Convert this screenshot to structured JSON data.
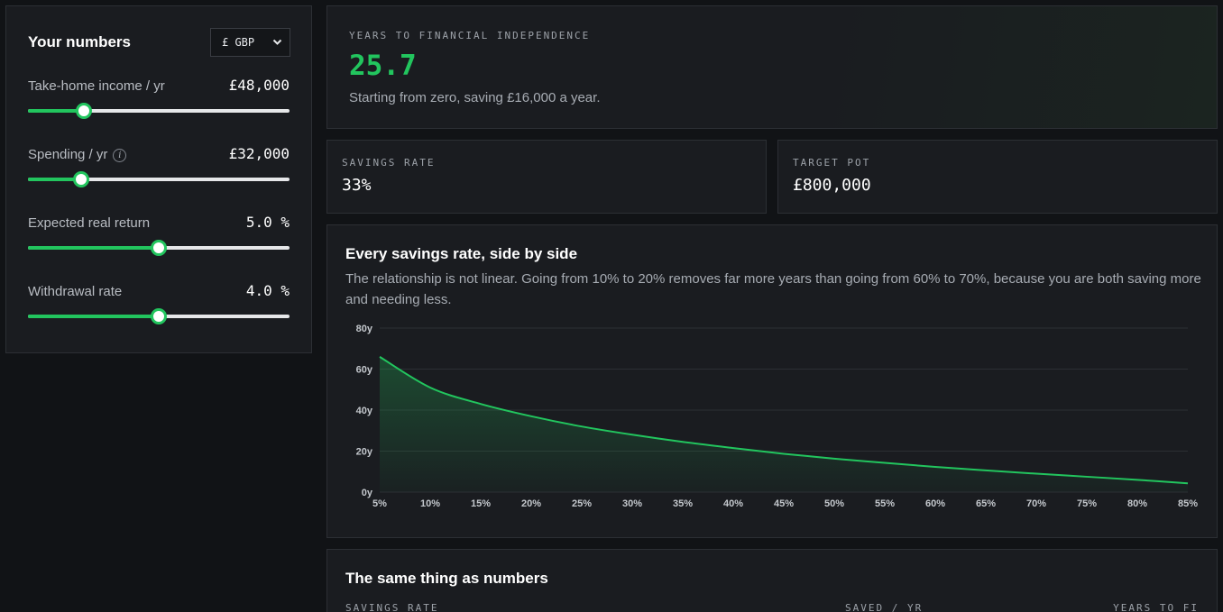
{
  "controls": {
    "title": "Your numbers",
    "currency": {
      "selected": "£ GBP"
    },
    "sliders": [
      {
        "label": "Take-home income / yr",
        "value": "£48,000",
        "fraction": 0.215,
        "info": false
      },
      {
        "label": "Spending / yr",
        "value": "£32,000",
        "fraction": 0.205,
        "info": true
      },
      {
        "label": "Expected real return",
        "value": "5.0 %",
        "fraction": 0.5,
        "info": false
      },
      {
        "label": "Withdrawal rate",
        "value": "4.0 %",
        "fraction": 0.5,
        "info": false
      }
    ]
  },
  "hero": {
    "label": "YEARS TO FINANCIAL INDEPENDENCE",
    "value": "25.7",
    "subtitle": "Starting from zero, saving £16,000 a year."
  },
  "stats": {
    "savings_rate": {
      "label": "SAVINGS RATE",
      "value": "33%"
    },
    "target_pot": {
      "label": "TARGET POT",
      "value": "£800,000"
    }
  },
  "chart_section": {
    "title": "Every savings rate, side by side",
    "description": "The relationship is not linear. Going from 10% to 20% removes far more years than going from 60% to 70%, because you are both saving more and needing less."
  },
  "chart_data": {
    "type": "area",
    "x": [
      5,
      10,
      15,
      20,
      25,
      30,
      35,
      40,
      45,
      50,
      55,
      60,
      65,
      70,
      75,
      80,
      85
    ],
    "y": [
      66.0,
      51.0,
      43.0,
      37.0,
      32.0,
      28.0,
      24.5,
      21.5,
      18.7,
      16.3,
      14.3,
      12.3,
      10.6,
      9.0,
      7.5,
      6.0,
      4.3
    ],
    "x_tick_labels": [
      "5%",
      "10%",
      "15%",
      "20%",
      "25%",
      "30%",
      "35%",
      "40%",
      "45%",
      "50%",
      "55%",
      "60%",
      "65%",
      "70%",
      "75%",
      "80%",
      "85%"
    ],
    "y_ticks": [
      0,
      20,
      40,
      60,
      80
    ],
    "y_tick_labels": [
      "0y",
      "20y",
      "40y",
      "60y",
      "80y"
    ],
    "xlim": [
      5,
      85
    ],
    "ylim": [
      0,
      80
    ],
    "grid": true,
    "color": "#22c55e"
  },
  "table_section": {
    "title": "The same thing as numbers",
    "columns": [
      "SAVINGS RATE",
      "SAVED / YR",
      "YEARS TO FI"
    ]
  }
}
